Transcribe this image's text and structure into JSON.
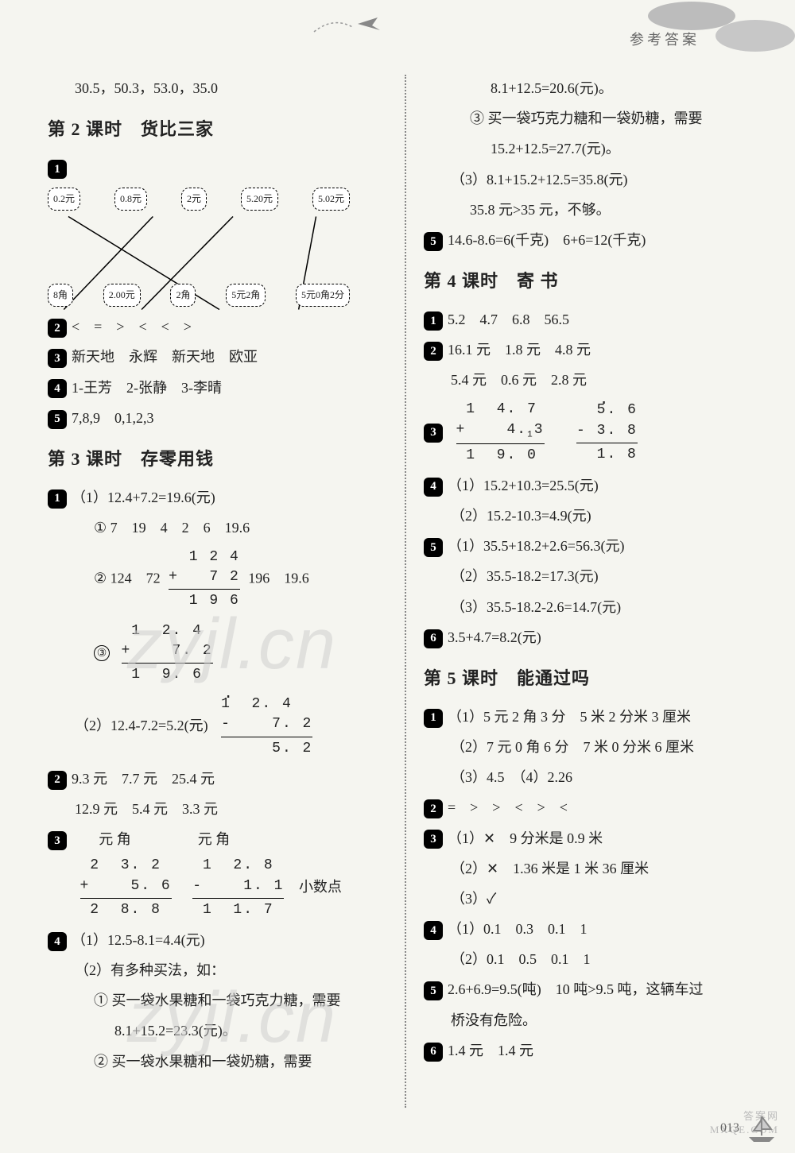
{
  "header": {
    "label": "参考答案",
    "plane_trail": "→"
  },
  "page_number": "013",
  "watermark": "zyjl.cn",
  "watermark2": "答案网\nMXQE.COM",
  "left": {
    "pre_line": "30.5，50.3，53.0，35.0",
    "s2": {
      "title": "第 2 课时　货比三家",
      "match": {
        "top": [
          "0.2元",
          "0.8元",
          "2元",
          "5.20元",
          "5.02元"
        ],
        "bottom": [
          "8角",
          "2.00元",
          "2角",
          "5元2角",
          "5元0角2分"
        ],
        "edges": [
          [
            0,
            2
          ],
          [
            1,
            0
          ],
          [
            2,
            1
          ],
          [
            3,
            3
          ],
          [
            4,
            4
          ]
        ]
      },
      "q2": "<　=　>　<　<　>",
      "q3": "新天地　永辉　新天地　欧亚",
      "q4": "1-王芳　2-张静　3-李晴",
      "q5": "7,8,9　0,1,2,3"
    },
    "s3": {
      "title": "第 3 课时　存零用钱",
      "q1_1": "（1）12.4+7.2=19.6(元)",
      "q1_1a": "① 7　19　4　2　6　19.6",
      "q1_2_prefix": "② 124　72",
      "q1_2_suffix": "196　19.6",
      "vmath_a": {
        "rows": [
          "  1 2 4",
          "+   7 2"
        ],
        "result": "  1 9 6"
      },
      "vmath_b": {
        "rows": [
          " 1  2. 4",
          "+    7. 2"
        ],
        "result": " 1  9. 6",
        "prefix": "③"
      },
      "q1_2b": "（2）12.4-7.2=5.2(元)",
      "vmath_c": {
        "rows": [
          " 1  2. 4",
          "-    7. 2"
        ],
        "result": "     5. 2",
        "dot_col": 0
      },
      "q2": "9.3 元　7.7 元　25.4 元",
      "q2b": "12.9 元　5.4 元　3.3 元",
      "q3_header_l": "元 角",
      "q3_header_r": "元 角",
      "vmath_d": {
        "rows": [
          " 2  3. 2",
          "+    5. 6"
        ],
        "result": " 2  8. 8"
      },
      "vmath_e": {
        "rows": [
          " 1  2. 8",
          "-    1. 1"
        ],
        "result": " 1  1. 7"
      },
      "q3_tail": "小数点",
      "q4_1": "（1）12.5-8.1=4.4(元)",
      "q4_2": "（2）有多种买法，如：",
      "q4_2a": "① 买一袋水果糖和一袋巧克力糖，需要",
      "q4_2a_eq": "8.1+15.2=23.3(元)。",
      "q4_2b": "② 买一袋水果糖和一袋奶糖，需要"
    }
  },
  "right": {
    "cont1": "8.1+12.5=20.6(元)。",
    "cont2": "③ 买一袋巧克力糖和一袋奶糖，需要",
    "cont2_eq": "15.2+12.5=27.7(元)。",
    "cont3": "（3）8.1+15.2+12.5=35.8(元)",
    "cont3b": "35.8 元>35 元，不够。",
    "q5": "14.6-8.6=6(千克)　6+6=12(千克)",
    "s4": {
      "title": "第 4 课时　寄 书",
      "q1": "5.2　4.7　6.8　56.5",
      "q2a": "16.1 元　1.8 元　4.8 元",
      "q2b": "5.4 元　0.6 元　2.8 元",
      "vmath_f": {
        "rows": [
          " 1  4. 7",
          "+    4. 3"
        ],
        "result": " 1  9. 0",
        "carry": "1"
      },
      "vmath_g": {
        "rows": [
          "  5. 6",
          "- 3. 8"
        ],
        "result": "  1. 8",
        "dot": true
      },
      "q4_1": "（1）15.2+10.3=25.5(元)",
      "q4_2": "（2）15.2-10.3=4.9(元)",
      "q5_1": "（1）35.5+18.2+2.6=56.3(元)",
      "q5_2": "（2）35.5-18.2=17.3(元)",
      "q5_3": "（3）35.5-18.2-2.6=14.7(元)",
      "q6": "3.5+4.7=8.2(元)"
    },
    "s5": {
      "title": "第 5 课时　能通过吗",
      "q1_1": "（1）5 元 2 角 3 分　5 米 2 分米 3 厘米",
      "q1_2": "（2）7 元 0 角 6 分　7 米 0 分米 6 厘米",
      "q1_3": "（3）4.5　（4）2.26",
      "q2": "=　>　>　<　>　<",
      "q3_1": "（1）✕　9 分米是 0.9 米",
      "q3_2": "（2）✕　1.36 米是 1 米 36 厘米",
      "q3_3": "（3）✓",
      "q4_1": "（1）0.1　0.3　0.1　1",
      "q4_2": "（2）0.1　0.5　0.1　1",
      "q5": "2.6+6.9=9.5(吨)　10 吨>9.5 吨，这辆车过",
      "q5b": "桥没有危险。",
      "q6": "1.4 元　1.4 元"
    }
  }
}
